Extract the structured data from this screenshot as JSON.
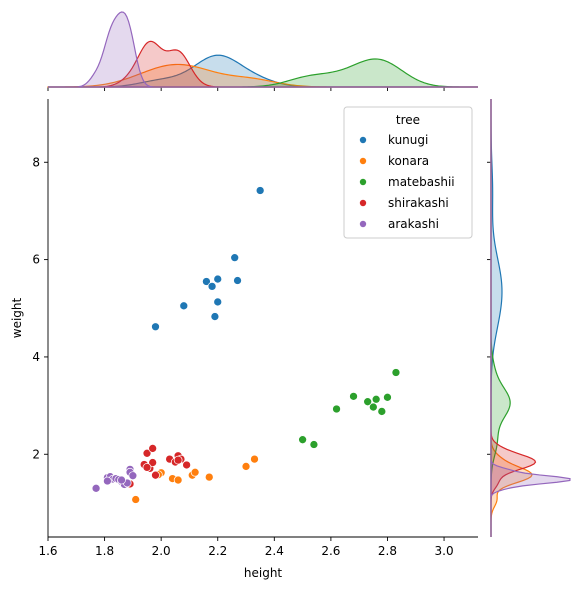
{
  "chart_data": {
    "type": "scatter",
    "title": "",
    "xlabel": "height",
    "ylabel": "weight",
    "xlim": [
      1.6,
      3.12
    ],
    "ylim": [
      0.3,
      9.3
    ],
    "xticks": [
      1.6,
      1.8,
      2.0,
      2.2,
      2.4,
      2.6,
      2.8,
      3.0
    ],
    "xtick_labels": [
      "1.6",
      "1.8",
      "2.0",
      "2.2",
      "2.4",
      "2.6",
      "2.8",
      "3.0"
    ],
    "yticks": [
      2,
      4,
      6,
      8
    ],
    "ytick_labels": [
      "2",
      "4",
      "6",
      "8"
    ],
    "grid": false,
    "marginal_plots": "kde",
    "legend": {
      "title": "tree",
      "placement": "upper right",
      "entries": [
        "kunugi",
        "konara",
        "matebashii",
        "shirakashi",
        "arakashi"
      ]
    },
    "series": [
      {
        "name": "kunugi",
        "color": "#1f77b4",
        "points": [
          [
            1.98,
            4.62
          ],
          [
            2.08,
            5.05
          ],
          [
            2.16,
            5.55
          ],
          [
            2.18,
            5.45
          ],
          [
            2.2,
            5.6
          ],
          [
            2.2,
            5.13
          ],
          [
            2.19,
            4.83
          ],
          [
            2.26,
            6.04
          ],
          [
            2.27,
            5.57
          ],
          [
            2.35,
            7.42
          ]
        ]
      },
      {
        "name": "konara",
        "color": "#ff7f0e",
        "points": [
          [
            1.91,
            1.07
          ],
          [
            2.0,
            1.62
          ],
          [
            2.04,
            1.5
          ],
          [
            2.06,
            1.47
          ],
          [
            2.11,
            1.57
          ],
          [
            2.12,
            1.63
          ],
          [
            2.17,
            1.53
          ],
          [
            2.3,
            1.75
          ],
          [
            2.33,
            1.9
          ],
          [
            1.99,
            1.58
          ]
        ]
      },
      {
        "name": "matebashii",
        "color": "#2ca02c",
        "points": [
          [
            2.5,
            2.3
          ],
          [
            2.54,
            2.2
          ],
          [
            2.62,
            2.93
          ],
          [
            2.68,
            3.19
          ],
          [
            2.73,
            3.08
          ],
          [
            2.75,
            2.97
          ],
          [
            2.76,
            3.13
          ],
          [
            2.78,
            2.88
          ],
          [
            2.8,
            3.17
          ],
          [
            2.83,
            3.68
          ]
        ]
      },
      {
        "name": "shirakashi",
        "color": "#d62728",
        "points": [
          [
            1.89,
            1.39
          ],
          [
            1.94,
            1.79
          ],
          [
            1.95,
            2.02
          ],
          [
            1.96,
            1.71
          ],
          [
            1.97,
            1.83
          ],
          [
            1.97,
            2.12
          ],
          [
            1.98,
            1.57
          ],
          [
            2.03,
            1.9
          ],
          [
            2.05,
            1.84
          ],
          [
            2.06,
            1.97
          ],
          [
            2.07,
            1.9
          ],
          [
            2.09,
            1.78
          ],
          [
            1.95,
            1.73
          ],
          [
            2.06,
            1.88
          ]
        ]
      },
      {
        "name": "arakashi",
        "color": "#9467bd",
        "points": [
          [
            1.77,
            1.3
          ],
          [
            1.81,
            1.52
          ],
          [
            1.82,
            1.54
          ],
          [
            1.83,
            1.49
          ],
          [
            1.84,
            1.5
          ],
          [
            1.85,
            1.48
          ],
          [
            1.86,
            1.44
          ],
          [
            1.87,
            1.38
          ],
          [
            1.88,
            1.41
          ],
          [
            1.89,
            1.69
          ],
          [
            1.89,
            1.63
          ],
          [
            1.9,
            1.56
          ],
          [
            1.81,
            1.45
          ],
          [
            1.86,
            1.47
          ]
        ]
      }
    ]
  }
}
